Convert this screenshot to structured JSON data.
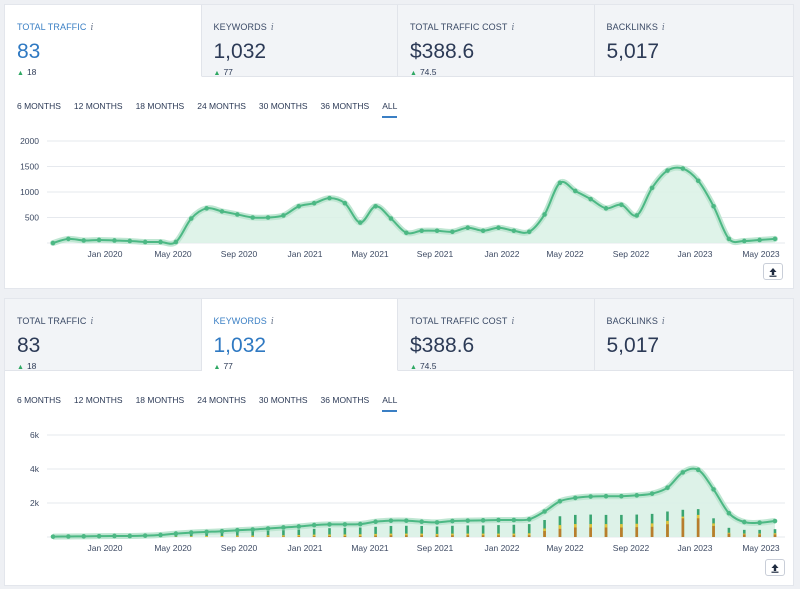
{
  "panels": [
    {
      "metrics": [
        {
          "label": "TOTAL TRAFFIC",
          "info": "i",
          "value": "83",
          "delta": "18",
          "active": true
        },
        {
          "label": "KEYWORDS",
          "info": "i",
          "value": "1,032",
          "delta": "77",
          "active": false
        },
        {
          "label": "TOTAL TRAFFIC COST",
          "info": "i",
          "value": "$388.6",
          "delta": "74.5",
          "active": false
        },
        {
          "label": "BACKLINKS",
          "info": "i",
          "value": "5,017",
          "delta": "",
          "active": false
        }
      ],
      "periods": [
        "6 MONTHS",
        "12 MONTHS",
        "18 MONTHS",
        "24 MONTHS",
        "30 MONTHS",
        "36 MONTHS",
        "ALL"
      ],
      "selected_period": "ALL"
    },
    {
      "metrics": [
        {
          "label": "TOTAL TRAFFIC",
          "info": "i",
          "value": "83",
          "delta": "18",
          "active": false
        },
        {
          "label": "KEYWORDS",
          "info": "i",
          "value": "1,032",
          "delta": "77",
          "active": true
        },
        {
          "label": "TOTAL TRAFFIC COST",
          "info": "i",
          "value": "$388.6",
          "delta": "74.5",
          "active": false
        },
        {
          "label": "BACKLINKS",
          "info": "i",
          "value": "5,017",
          "delta": "",
          "active": false
        }
      ],
      "periods": [
        "6 MONTHS",
        "12 MONTHS",
        "18 MONTHS",
        "24 MONTHS",
        "30 MONTHS",
        "36 MONTHS",
        "ALL"
      ],
      "selected_period": "ALL"
    }
  ],
  "colors": {
    "line": "#4cb884",
    "fill": "#d9f1e5",
    "bar_dark": "#b87d2e",
    "bar_yellow": "#e3c43a",
    "bar_green": "#3aa571",
    "grid": "#e6e9ee",
    "accent": "#3a7fc4"
  },
  "icons": {
    "export": "upload-arrow-icon",
    "info": "info-icon",
    "delta": "triangle-up-icon"
  },
  "chart_data": [
    {
      "type": "area",
      "series": [
        {
          "values": [
            0,
            80,
            50,
            60,
            50,
            40,
            20,
            20,
            20,
            480,
            680,
            620,
            560,
            500,
            500,
            540,
            720,
            780,
            880,
            780,
            400,
            720,
            480,
            200,
            240,
            240,
            220,
            300,
            240,
            300,
            240,
            220,
            560,
            1180,
            1020,
            860,
            680,
            750,
            540,
            1080,
            1420,
            1460,
            1220,
            720,
            80,
            40,
            60,
            80
          ]
        }
      ],
      "x_ticks": [
        "Jan 2020",
        "May 2020",
        "Sep 2020",
        "Jan 2021",
        "May 2021",
        "Sep 2021",
        "Jan 2022",
        "May 2022",
        "Sep 2022",
        "Jan 2023",
        "May 2023"
      ],
      "y_ticks": [
        "500",
        "1000",
        "1500",
        "2000"
      ],
      "ylim": [
        0,
        2000
      ]
    },
    {
      "type": "bar",
      "stacked_with_area": true,
      "series": [
        {
          "values": [
            60,
            70,
            80,
            90,
            100,
            100,
            120,
            150,
            180,
            220,
            250,
            280,
            300,
            320,
            360,
            400,
            440,
            480,
            520,
            540,
            560,
            600,
            650,
            660,
            650,
            620,
            660,
            680,
            680,
            700,
            720,
            760,
            1000,
            1220,
            1300,
            1320,
            1300,
            1300,
            1320,
            1360,
            1500,
            1600,
            1640,
            1100,
            540,
            420,
            420,
            460
          ]
        },
        {
          "values": [
            0,
            0,
            0,
            0,
            0,
            0,
            0,
            0,
            20,
            40,
            60,
            60,
            80,
            80,
            100,
            100,
            120,
            140,
            150,
            150,
            160,
            180,
            200,
            200,
            200,
            180,
            200,
            200,
            200,
            200,
            200,
            220,
            500,
            700,
            760,
            760,
            760,
            760,
            780,
            800,
            950,
            1200,
            1300,
            800,
            250,
            200,
            200,
            220
          ]
        },
        {
          "values": [
            0,
            0,
            0,
            0,
            0,
            0,
            0,
            0,
            0,
            0,
            0,
            0,
            20,
            20,
            30,
            30,
            40,
            50,
            60,
            60,
            60,
            80,
            100,
            100,
            100,
            80,
            100,
            100,
            100,
            100,
            100,
            100,
            350,
            480,
            560,
            560,
            560,
            560,
            580,
            600,
            750,
            1100,
            1100,
            650,
            200,
            150,
            150,
            150
          ]
        }
      ],
      "area_values": [
        20,
        30,
        40,
        50,
        60,
        60,
        80,
        120,
        200,
        260,
        300,
        340,
        400,
        440,
        500,
        560,
        620,
        700,
        740,
        740,
        760,
        900,
        960,
        960,
        900,
        860,
        940,
        960,
        980,
        1000,
        1000,
        1040,
        1500,
        2100,
        2300,
        2380,
        2400,
        2400,
        2450,
        2550,
        2900,
        3800,
        3950,
        2800,
        1400,
        880,
        840,
        940
      ],
      "x_ticks": [
        "Jan 2020",
        "May 2020",
        "Sep 2020",
        "Jan 2021",
        "May 2021",
        "Sep 2021",
        "Jan 2022",
        "May 2022",
        "Sep 2022",
        "Jan 2023",
        "May 2023"
      ],
      "y_ticks": [
        "2k",
        "4k",
        "6k"
      ],
      "ylim": [
        0,
        6000
      ]
    }
  ]
}
